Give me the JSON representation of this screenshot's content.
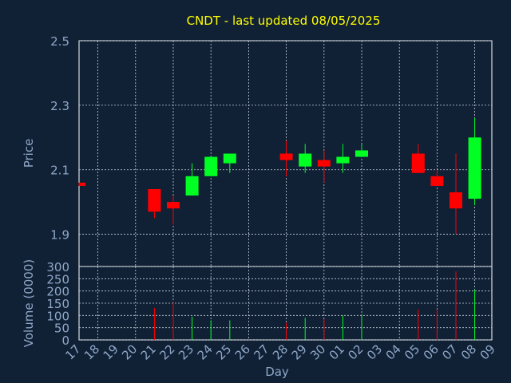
{
  "colors": {
    "background": "#102035",
    "plot_bg": "#0c1b2e",
    "grid": "#c8d2dc",
    "axis": "#ffffff",
    "title": "#ffff00",
    "label": "#8fa8c8",
    "up": "#00ff22",
    "down": "#ff0000"
  },
  "chart_data": [
    {
      "type": "candlestick",
      "title": "CNDT - last updated 08/05/2025",
      "ylabel": "Price",
      "ylim": [
        1.8,
        2.5
      ],
      "yticks": [
        "2.5",
        "2.3",
        "2.1",
        "1.9"
      ],
      "ytick_values": [
        2.5,
        2.3,
        2.1,
        1.9
      ],
      "grid": true,
      "x": [
        "17",
        "18",
        "19",
        "20",
        "21",
        "22",
        "23",
        "24",
        "25",
        "26",
        "27",
        "28",
        "29",
        "30",
        "01",
        "02",
        "03",
        "04",
        "05",
        "06",
        "07",
        "08",
        "09"
      ],
      "candles": [
        {
          "day": "17",
          "open": 2.06,
          "high": 2.06,
          "low": 2.05,
          "close": 2.05
        },
        {
          "day": "21",
          "open": 2.04,
          "high": 2.04,
          "low": 1.95,
          "close": 1.97
        },
        {
          "day": "22",
          "open": 2.0,
          "high": 2.02,
          "low": 1.93,
          "close": 1.98
        },
        {
          "day": "23",
          "open": 2.02,
          "high": 2.12,
          "low": 2.02,
          "close": 2.08
        },
        {
          "day": "24",
          "open": 2.08,
          "high": 2.14,
          "low": 2.08,
          "close": 2.14
        },
        {
          "day": "25",
          "open": 2.12,
          "high": 2.15,
          "low": 2.09,
          "close": 2.15
        },
        {
          "day": "28",
          "open": 2.15,
          "high": 2.19,
          "low": 2.08,
          "close": 2.13
        },
        {
          "day": "29",
          "open": 2.11,
          "high": 2.18,
          "low": 2.09,
          "close": 2.15
        },
        {
          "day": "30",
          "open": 2.13,
          "high": 2.16,
          "low": 2.06,
          "close": 2.11
        },
        {
          "day": "01",
          "open": 2.12,
          "high": 2.18,
          "low": 2.09,
          "close": 2.14
        },
        {
          "day": "02",
          "open": 2.14,
          "high": 2.18,
          "low": 2.14,
          "close": 2.16
        },
        {
          "day": "05",
          "open": 2.15,
          "high": 2.18,
          "low": 2.09,
          "close": 2.09
        },
        {
          "day": "06",
          "open": 2.08,
          "high": 2.1,
          "low": 2.05,
          "close": 2.05
        },
        {
          "day": "07",
          "open": 2.03,
          "high": 2.15,
          "low": 1.9,
          "close": 1.98
        },
        {
          "day": "08",
          "open": 2.01,
          "high": 2.26,
          "low": 1.99,
          "close": 2.2
        }
      ]
    },
    {
      "type": "bar",
      "ylabel": "Volume (0000)",
      "xlabel": "Day",
      "ylim": [
        0,
        300
      ],
      "yticks": [
        "300",
        "250",
        "200",
        "150",
        "100",
        "50",
        "0"
      ],
      "ytick_values": [
        300,
        250,
        200,
        150,
        100,
        50,
        0
      ],
      "grid": true,
      "x": [
        "17",
        "18",
        "19",
        "20",
        "21",
        "22",
        "23",
        "24",
        "25",
        "26",
        "27",
        "28",
        "29",
        "30",
        "01",
        "02",
        "03",
        "04",
        "05",
        "06",
        "07",
        "08",
        "09"
      ],
      "volumes": [
        {
          "day": "21",
          "value": 130,
          "dir": "down"
        },
        {
          "day": "22",
          "value": 155,
          "dir": "down"
        },
        {
          "day": "23",
          "value": 95,
          "dir": "up"
        },
        {
          "day": "24",
          "value": 80,
          "dir": "up"
        },
        {
          "day": "25",
          "value": 80,
          "dir": "up"
        },
        {
          "day": "28",
          "value": 70,
          "dir": "down"
        },
        {
          "day": "29",
          "value": 90,
          "dir": "up"
        },
        {
          "day": "30",
          "value": 85,
          "dir": "down"
        },
        {
          "day": "01",
          "value": 100,
          "dir": "up"
        },
        {
          "day": "02",
          "value": 105,
          "dir": "up"
        },
        {
          "day": "05",
          "value": 125,
          "dir": "down"
        },
        {
          "day": "06",
          "value": 125,
          "dir": "down"
        },
        {
          "day": "07",
          "value": 280,
          "dir": "down"
        },
        {
          "day": "08",
          "value": 205,
          "dir": "up"
        }
      ]
    }
  ]
}
